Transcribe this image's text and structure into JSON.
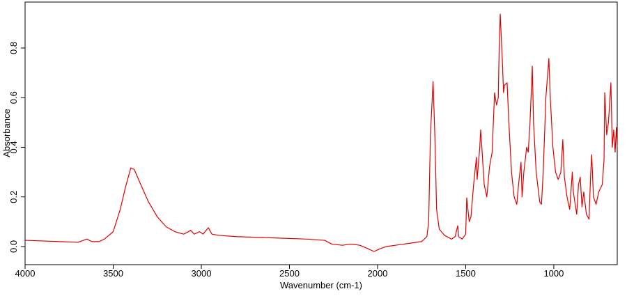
{
  "chart_data": {
    "type": "line",
    "x_label": "Wavenumber (cm-1)",
    "y_label": "Absorbance",
    "xlim": [
      4000,
      640
    ],
    "ylim": [
      -0.073,
      0.985
    ],
    "xticks": [
      4000,
      3500,
      3000,
      2500,
      2000,
      1500,
      1000
    ],
    "yticks": [
      {
        "value": 0,
        "label": "0.0"
      },
      0.2,
      0.4,
      0.6,
      0.8
    ],
    "x_reversed": true,
    "series": [
      {
        "name": "Absorbance",
        "color": "#e00000",
        "x": [
          4000,
          3800,
          3700,
          3650,
          3620,
          3580,
          3550,
          3500,
          3460,
          3430,
          3400,
          3380,
          3350,
          3300,
          3250,
          3200,
          3150,
          3100,
          3060,
          3040,
          3010,
          2990,
          2960,
          2940,
          2900,
          2800,
          2600,
          2400,
          2300,
          2260,
          2200,
          2150,
          2100,
          2050,
          2020,
          1990,
          1950,
          1900,
          1850,
          1800,
          1750,
          1720,
          1710,
          1700,
          1685,
          1675,
          1665,
          1650,
          1620,
          1580,
          1560,
          1545,
          1540,
          1520,
          1500,
          1494,
          1480,
          1470,
          1455,
          1439,
          1435,
          1420,
          1415,
          1410,
          1395,
          1380,
          1365,
          1350,
          1336,
          1325,
          1315,
          1310,
          1304,
          1292,
          1285,
          1280,
          1265,
          1255,
          1240,
          1225,
          1210,
          1200,
          1186,
          1180,
          1170,
          1154,
          1145,
          1135,
          1122,
          1115,
          1100,
          1080,
          1070,
          1060,
          1045,
          1028,
          1020,
          1005,
          990,
          975,
          960,
          949,
          940,
          925,
          910,
          895,
          889,
          885,
          870,
          860,
          850,
          840,
          830,
          815,
          800,
          791,
          785,
          775,
          760,
          745,
          725,
          715,
          711,
          700,
          690,
          676,
          668,
          660,
          652,
          645,
          640
        ],
        "values": [
          0.025,
          0.02,
          0.017,
          0.03,
          0.02,
          0.02,
          0.03,
          0.06,
          0.15,
          0.24,
          0.317,
          0.31,
          0.26,
          0.18,
          0.12,
          0.08,
          0.06,
          0.05,
          0.065,
          0.05,
          0.06,
          0.05,
          0.076,
          0.05,
          0.045,
          0.04,
          0.035,
          0.03,
          0.025,
          0.01,
          0.005,
          0.01,
          0.005,
          -0.01,
          -0.02,
          -0.01,
          0.0,
          0.005,
          0.01,
          0.015,
          0.02,
          0.04,
          0.1,
          0.45,
          0.665,
          0.45,
          0.15,
          0.07,
          0.045,
          0.03,
          0.04,
          0.084,
          0.04,
          0.03,
          0.05,
          0.196,
          0.1,
          0.12,
          0.25,
          0.36,
          0.27,
          0.4,
          0.47,
          0.42,
          0.25,
          0.2,
          0.32,
          0.38,
          0.62,
          0.57,
          0.6,
          0.8,
          0.937,
          0.75,
          0.62,
          0.65,
          0.66,
          0.5,
          0.3,
          0.2,
          0.17,
          0.25,
          0.34,
          0.2,
          0.3,
          0.4,
          0.38,
          0.5,
          0.727,
          0.5,
          0.3,
          0.18,
          0.17,
          0.3,
          0.6,
          0.758,
          0.6,
          0.4,
          0.3,
          0.27,
          0.3,
          0.43,
          0.28,
          0.2,
          0.15,
          0.3,
          0.22,
          0.2,
          0.13,
          0.25,
          0.28,
          0.16,
          0.22,
          0.13,
          0.11,
          0.29,
          0.37,
          0.2,
          0.17,
          0.22,
          0.25,
          0.35,
          0.62,
          0.45,
          0.5,
          0.66,
          0.4,
          0.47,
          0.38,
          0.48,
          0.4
        ]
      }
    ]
  }
}
